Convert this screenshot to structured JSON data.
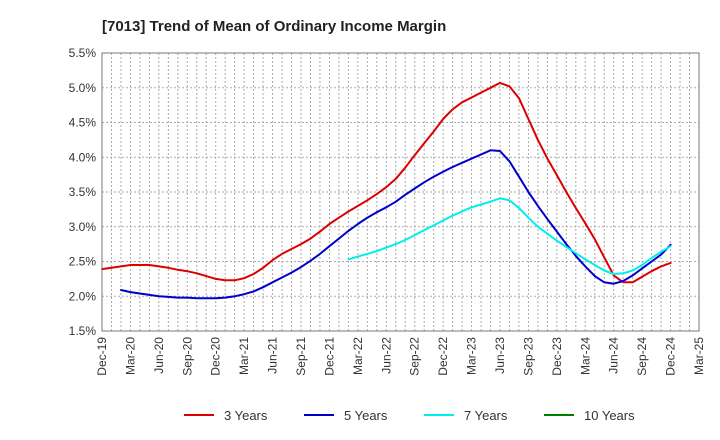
{
  "chart_data": {
    "type": "line",
    "title": "[7013]  Trend of Mean of Ordinary Income Margin",
    "xlabel": "",
    "ylabel": "",
    "x_ticks": [
      "Dec-19",
      "Mar-20",
      "Jun-20",
      "Sep-20",
      "Dec-20",
      "Mar-21",
      "Jun-21",
      "Sep-21",
      "Dec-21",
      "Mar-22",
      "Jun-22",
      "Sep-22",
      "Dec-22",
      "Mar-23",
      "Jun-23",
      "Sep-23",
      "Dec-23",
      "Mar-24",
      "Jun-24",
      "Sep-24",
      "Dec-24",
      "Mar-25"
    ],
    "y_ticks": [
      "1.5%",
      "2.0%",
      "2.5%",
      "3.0%",
      "3.5%",
      "4.0%",
      "4.5%",
      "5.0%",
      "5.5%"
    ],
    "ylim": [
      1.5,
      5.5
    ],
    "grid": true,
    "legend_position": "bottom",
    "series": [
      {
        "name": "3 Years",
        "color": "#dd0000",
        "x": [
          "Dec-19",
          "Jan-20",
          "Feb-20",
          "Mar-20",
          "Apr-20",
          "May-20",
          "Jun-20",
          "Jul-20",
          "Aug-20",
          "Sep-20",
          "Oct-20",
          "Nov-20",
          "Dec-20",
          "Jan-21",
          "Feb-21",
          "Mar-21",
          "Apr-21",
          "May-21",
          "Jun-21",
          "Jul-21",
          "Aug-21",
          "Sep-21",
          "Oct-21",
          "Nov-21",
          "Dec-21",
          "Jan-22",
          "Feb-22",
          "Mar-22",
          "Apr-22",
          "May-22",
          "Jun-22",
          "Jul-22",
          "Aug-22",
          "Sep-22",
          "Oct-22",
          "Nov-22",
          "Dec-22",
          "Jan-23",
          "Feb-23",
          "Mar-23",
          "Apr-23",
          "May-23",
          "Jun-23",
          "Jul-23",
          "Aug-23",
          "Sep-23",
          "Oct-23",
          "Nov-23",
          "Dec-23",
          "Jan-24",
          "Feb-24",
          "Mar-24",
          "Apr-24",
          "May-24",
          "Jun-24",
          "Jul-24",
          "Aug-24",
          "Sep-24",
          "Oct-24",
          "Nov-24",
          "Dec-24"
        ],
        "values": [
          2.39,
          2.41,
          2.43,
          2.45,
          2.45,
          2.45,
          2.43,
          2.41,
          2.38,
          2.36,
          2.33,
          2.29,
          2.25,
          2.23,
          2.23,
          2.26,
          2.32,
          2.41,
          2.52,
          2.61,
          2.68,
          2.75,
          2.83,
          2.93,
          3.04,
          3.13,
          3.22,
          3.3,
          3.38,
          3.47,
          3.57,
          3.69,
          3.85,
          4.03,
          4.2,
          4.37,
          4.55,
          4.69,
          4.79,
          4.86,
          4.93,
          5.0,
          5.07,
          5.02,
          4.85,
          4.55,
          4.25,
          3.98,
          3.74,
          3.5,
          3.27,
          3.05,
          2.82,
          2.56,
          2.3,
          2.2,
          2.2,
          2.28,
          2.36,
          2.43,
          2.48
        ]
      },
      {
        "name": "5 Years",
        "color": "#0000cc",
        "x": [
          "Feb-20",
          "Mar-20",
          "Apr-20",
          "May-20",
          "Jun-20",
          "Jul-20",
          "Aug-20",
          "Sep-20",
          "Oct-20",
          "Nov-20",
          "Dec-20",
          "Jan-21",
          "Feb-21",
          "Mar-21",
          "Apr-21",
          "May-21",
          "Jun-21",
          "Jul-21",
          "Aug-21",
          "Sep-21",
          "Oct-21",
          "Nov-21",
          "Dec-21",
          "Jan-22",
          "Feb-22",
          "Mar-22",
          "Apr-22",
          "May-22",
          "Jun-22",
          "Jul-22",
          "Aug-22",
          "Sep-22",
          "Oct-22",
          "Nov-22",
          "Dec-22",
          "Jan-23",
          "Feb-23",
          "Mar-23",
          "Apr-23",
          "May-23",
          "Jun-23",
          "Jul-23",
          "Aug-23",
          "Sep-23",
          "Oct-23",
          "Nov-23",
          "Dec-23",
          "Jan-24",
          "Feb-24",
          "Mar-24",
          "Apr-24",
          "May-24",
          "Jun-24",
          "Jul-24",
          "Aug-24",
          "Sep-24",
          "Oct-24",
          "Nov-24",
          "Dec-24"
        ],
        "values": [
          2.09,
          2.06,
          2.04,
          2.02,
          2.0,
          1.99,
          1.98,
          1.98,
          1.97,
          1.97,
          1.97,
          1.98,
          2.0,
          2.03,
          2.07,
          2.13,
          2.2,
          2.27,
          2.34,
          2.42,
          2.51,
          2.61,
          2.72,
          2.83,
          2.94,
          3.04,
          3.13,
          3.21,
          3.28,
          3.36,
          3.46,
          3.55,
          3.64,
          3.72,
          3.79,
          3.86,
          3.92,
          3.98,
          4.04,
          4.1,
          4.09,
          3.94,
          3.72,
          3.5,
          3.3,
          3.11,
          2.93,
          2.75,
          2.58,
          2.43,
          2.29,
          2.2,
          2.18,
          2.22,
          2.3,
          2.4,
          2.5,
          2.6,
          2.74
        ]
      },
      {
        "name": "7 Years",
        "color": "#00eeee",
        "x": [
          "Feb-22",
          "Mar-22",
          "Apr-22",
          "May-22",
          "Jun-22",
          "Jul-22",
          "Aug-22",
          "Sep-22",
          "Oct-22",
          "Nov-22",
          "Dec-22",
          "Jan-23",
          "Feb-23",
          "Mar-23",
          "Apr-23",
          "May-23",
          "Jun-23",
          "Jul-23",
          "Aug-23",
          "Sep-23",
          "Oct-23",
          "Nov-23",
          "Dec-23",
          "Jan-24",
          "Feb-24",
          "Mar-24",
          "Apr-24",
          "May-24",
          "Jun-24",
          "Jul-24",
          "Aug-24",
          "Sep-24",
          "Oct-24",
          "Nov-24",
          "Dec-24"
        ],
        "values": [
          2.53,
          2.57,
          2.61,
          2.65,
          2.7,
          2.75,
          2.81,
          2.88,
          2.95,
          3.02,
          3.09,
          3.16,
          3.22,
          3.28,
          3.32,
          3.36,
          3.41,
          3.38,
          3.27,
          3.13,
          3.0,
          2.9,
          2.8,
          2.71,
          2.62,
          2.53,
          2.45,
          2.37,
          2.32,
          2.33,
          2.37,
          2.45,
          2.55,
          2.64,
          2.72
        ]
      },
      {
        "name": "10 Years",
        "color": "#008000",
        "x": [],
        "values": []
      }
    ]
  }
}
